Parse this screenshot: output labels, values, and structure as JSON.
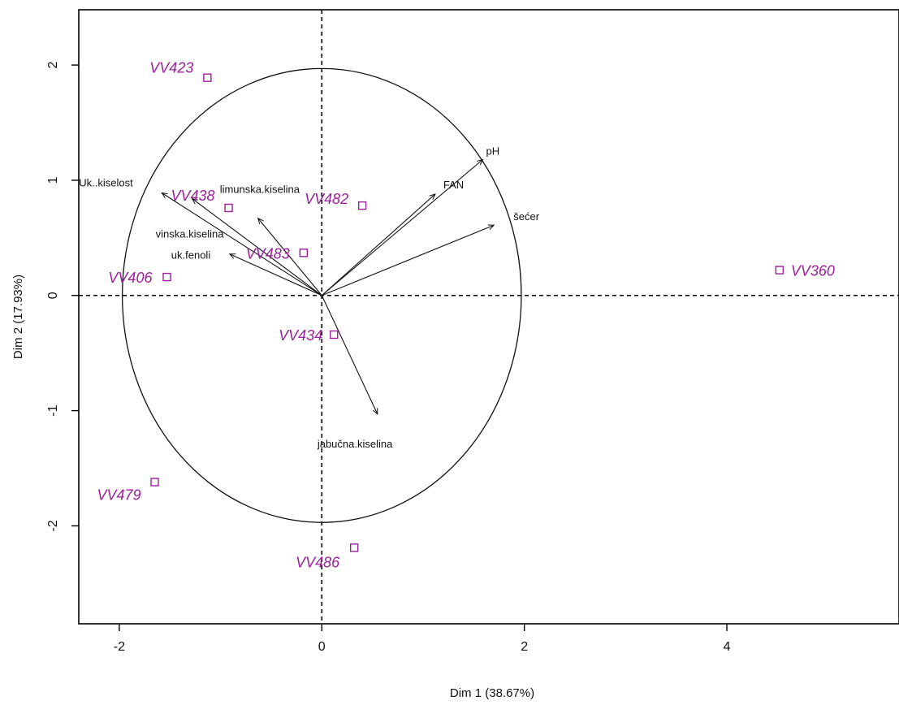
{
  "chart_data": {
    "type": "scatter",
    "title": "",
    "xlabel": "Dim 1 (38.67%)",
    "ylabel": "Dim 2 (17.93%)",
    "xlim": [
      -2.4,
      5.7
    ],
    "ylim": [
      -2.85,
      2.48
    ],
    "xticks": [
      -2,
      0,
      2,
      4
    ],
    "yticks": [
      -2,
      -1,
      0,
      1,
      2
    ],
    "grid": false,
    "point_color": "#9b1f9b",
    "correlation_circle_radius": 1.97,
    "points": [
      {
        "label": "VV423",
        "x": -1.13,
        "y": 1.89
      },
      {
        "label": "VV438",
        "x": -0.92,
        "y": 0.76
      },
      {
        "label": "VV482",
        "x": 0.4,
        "y": 0.78
      },
      {
        "label": "VV483",
        "x": -0.18,
        "y": 0.37
      },
      {
        "label": "VV406",
        "x": -1.53,
        "y": 0.16
      },
      {
        "label": "VV434",
        "x": 0.12,
        "y": -0.34
      },
      {
        "label": "VV479",
        "x": -1.65,
        "y": -1.62
      },
      {
        "label": "VV486",
        "x": 0.32,
        "y": -2.19
      },
      {
        "label": "VV360",
        "x": 4.52,
        "y": 0.22
      }
    ],
    "vectors": [
      {
        "label": "pH",
        "x": 1.59,
        "y": 1.18
      },
      {
        "label": "FAN",
        "x": 1.12,
        "y": 0.88
      },
      {
        "label": "šećer",
        "x": 1.7,
        "y": 0.61
      },
      {
        "label": "Uk..kiselost",
        "x": -1.58,
        "y": 0.89
      },
      {
        "label": "limunska.kiselina",
        "x": -0.63,
        "y": 0.67
      },
      {
        "label": "vinska.kiselina",
        "x": -1.28,
        "y": 0.84
      },
      {
        "label": "uk.fenoli",
        "x": -0.91,
        "y": 0.36
      },
      {
        "label": "jabučna.kiselina",
        "x": 0.55,
        "y": -1.03
      }
    ]
  }
}
